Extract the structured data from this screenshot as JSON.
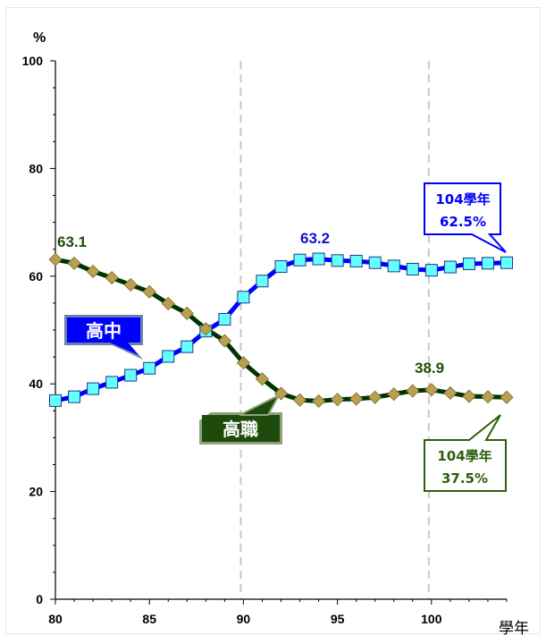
{
  "chart_data": {
    "type": "line",
    "ylabel": "%",
    "xlabel": "學年",
    "xlim": [
      80,
      104
    ],
    "ylim": [
      0,
      100
    ],
    "x_ticks": [
      80,
      85,
      90,
      95,
      100
    ],
    "y_ticks": [
      0,
      20,
      40,
      60,
      80,
      100
    ],
    "ref_lines_x": [
      90,
      100
    ],
    "x": [
      80,
      81,
      82,
      83,
      84,
      85,
      86,
      87,
      88,
      89,
      90,
      91,
      92,
      93,
      94,
      95,
      96,
      97,
      98,
      99,
      100,
      101,
      102,
      103,
      104
    ],
    "series": [
      {
        "name": "高中",
        "color": "#0000ff",
        "marker_color": "#66ffff",
        "marker": "square",
        "values": [
          36.9,
          37.6,
          39.1,
          40.3,
          41.6,
          42.9,
          45.1,
          46.9,
          49.8,
          52.0,
          56.1,
          59.1,
          61.8,
          63.0,
          63.2,
          62.9,
          62.8,
          62.5,
          61.9,
          61.3,
          61.1,
          61.7,
          62.3,
          62.4,
          62.5
        ]
      },
      {
        "name": "高職",
        "color": "#003300",
        "marker_color": "#b9a04f",
        "marker": "diamond",
        "values": [
          63.1,
          62.4,
          60.9,
          59.7,
          58.4,
          57.1,
          54.9,
          53.1,
          50.2,
          48.0,
          43.9,
          40.9,
          38.2,
          37.0,
          36.8,
          37.1,
          37.2,
          37.5,
          38.1,
          38.7,
          38.9,
          38.3,
          37.7,
          37.6,
          37.5
        ]
      }
    ],
    "annotations": [
      {
        "text": "63.1",
        "color": "#1e4d0c"
      },
      {
        "text": "63.2",
        "color": "#1111cc"
      },
      {
        "text": "38.9",
        "color": "#1e4d0c"
      }
    ],
    "callouts": [
      {
        "line1": "104學年",
        "line2": "62.5%",
        "color": "#0000ff"
      },
      {
        "line1": "104學年",
        "line2": "37.5%",
        "color": "#2d5e10"
      }
    ],
    "series_tags": [
      {
        "text": "高中",
        "fill": "#0000ff",
        "border": "#6b7fa8"
      },
      {
        "text": "高職",
        "fill": "#1e4a0c",
        "border": "#8ea27a"
      }
    ]
  }
}
